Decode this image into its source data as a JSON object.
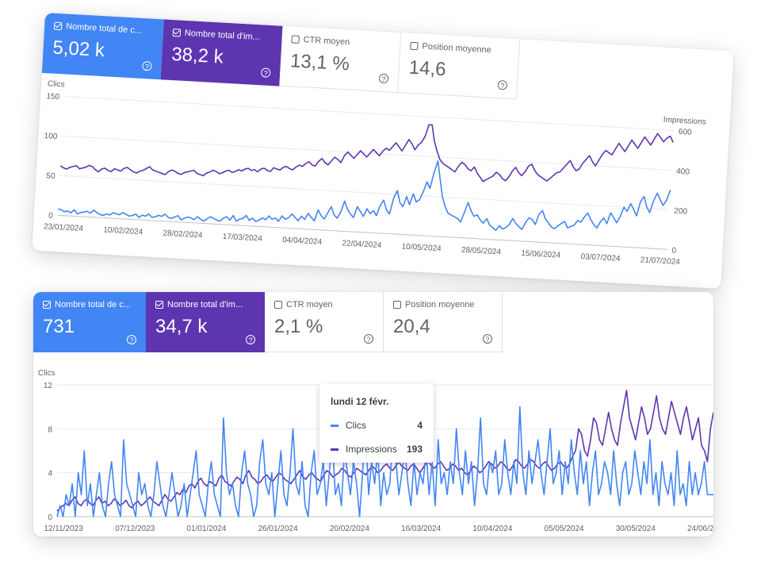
{
  "colors": {
    "clicks": "#4285f4",
    "impressions": "#5e35b1",
    "axis_text": "#5f6368",
    "grid": "#e8eaed"
  },
  "top_panel": {
    "tiles": [
      {
        "label": "Nombre total de c...",
        "value": "5,02 k",
        "checked": true
      },
      {
        "label": "Nombre total d'im...",
        "value": "38,2 k",
        "checked": true
      },
      {
        "label": "CTR moyen",
        "value": "13,1 %",
        "checked": false
      },
      {
        "label": "Position moyenne",
        "value": "14,6",
        "checked": false
      }
    ]
  },
  "bottom_panel": {
    "tiles": [
      {
        "label": "Nombre total de c...",
        "value": "731",
        "checked": true
      },
      {
        "label": "Nombre total d'im...",
        "value": "34,7 k",
        "checked": true
      },
      {
        "label": "CTR moyen",
        "value": "2,1 %",
        "checked": false
      },
      {
        "label": "Position moyenne",
        "value": "20,4",
        "checked": false
      }
    ],
    "tooltip": {
      "date": "lundi 12 févr.",
      "rows": [
        {
          "label": "Clics",
          "value": "4"
        },
        {
          "label": "Impressions",
          "value": "193"
        }
      ]
    }
  },
  "chart_data": [
    {
      "type": "line",
      "title": "",
      "y_left_label": "Clics",
      "y_right_label": "Impressions",
      "ylim_left": [
        0,
        150
      ],
      "ylim_right": [
        0,
        600
      ],
      "y_left_ticks": [
        "0",
        "50",
        "100",
        "150"
      ],
      "y_right_ticks": [
        "0",
        "200",
        "400",
        "600"
      ],
      "x_tick_labels": [
        "23/01/2024",
        "10/02/2024",
        "28/02/2024",
        "17/03/2024",
        "04/04/2024",
        "22/04/2024",
        "10/05/2024",
        "28/05/2024",
        "15/06/2024",
        "03/07/2024",
        "21/07/2024"
      ],
      "grid": true,
      "series": [
        {
          "name": "Clics",
          "axis": "left",
          "values": [
            8,
            7,
            5,
            6,
            4,
            8,
            3,
            5,
            6,
            7,
            5,
            9,
            6,
            4,
            3,
            5,
            4,
            7,
            6,
            5,
            8,
            6,
            4,
            5,
            7,
            3,
            6,
            5,
            8,
            4,
            5,
            7,
            6,
            9,
            5,
            4,
            6,
            8,
            3,
            5,
            7,
            6,
            4,
            8,
            5,
            3,
            6,
            9,
            7,
            5,
            4,
            8,
            10,
            6,
            12,
            5,
            8,
            9,
            13,
            7,
            10,
            6,
            8,
            11,
            9,
            14,
            10,
            12,
            8,
            15,
            11,
            13,
            18,
            14,
            10,
            16,
            12,
            20,
            15,
            11,
            25,
            18,
            14,
            22,
            30,
            20,
            16,
            24,
            38,
            28,
            22,
            18,
            32,
            26,
            20,
            30,
            24,
            28,
            22,
            35,
            42,
            30,
            25,
            45,
            55,
            40,
            35,
            48,
            38,
            52,
            42,
            45,
            55,
            68,
            60,
            80,
            95,
            72,
            50,
            38,
            30,
            28,
            26,
            24,
            20,
            32,
            45,
            35,
            28,
            30,
            24,
            20,
            26,
            18,
            15,
            12,
            18,
            14,
            16,
            20,
            28,
            22,
            18,
            15,
            24,
            30,
            28,
            22,
            35,
            40,
            30,
            25,
            20,
            18,
            22,
            25,
            28,
            20,
            22,
            24,
            30,
            28,
            35,
            40,
            32,
            26,
            22,
            30,
            35,
            28,
            42,
            36,
            30,
            38,
            50,
            45,
            55,
            48,
            40,
            58,
            65,
            52,
            45,
            60,
            70,
            62,
            55,
            62,
            75
          ]
        },
        {
          "name": "Impressions",
          "axis": "right",
          "values": [
            250,
            240,
            235,
            245,
            250,
            255,
            240,
            245,
            250,
            260,
            255,
            240,
            230,
            245,
            250,
            240,
            235,
            250,
            245,
            240,
            255,
            260,
            250,
            240,
            235,
            245,
            250,
            260,
            270,
            255,
            250,
            245,
            240,
            235,
            250,
            260,
            255,
            245,
            240,
            250,
            255,
            260,
            265,
            250,
            245,
            240,
            255,
            260,
            270,
            265,
            255,
            260,
            270,
            275,
            265,
            270,
            280,
            275,
            285,
            290,
            280,
            285,
            275,
            290,
            295,
            285,
            280,
            300,
            295,
            290,
            305,
            310,
            300,
            295,
            310,
            320,
            315,
            330,
            340,
            325,
            320,
            345,
            360,
            340,
            330,
            350,
            370,
            360,
            345,
            380,
            400,
            385,
            370,
            390,
            410,
            395,
            380,
            400,
            420,
            405,
            390,
            415,
            430,
            420,
            440,
            460,
            440,
            420,
            450,
            480,
            460,
            430,
            455,
            470,
            500,
            560,
            560,
            480,
            430,
            390,
            370,
            360,
            350,
            340,
            330,
            360,
            380,
            370,
            350,
            340,
            360,
            330,
            310,
            290,
            300,
            310,
            320,
            340,
            330,
            310,
            300,
            320,
            350,
            370,
            345,
            330,
            350,
            380,
            390,
            360,
            340,
            330,
            320,
            310,
            325,
            340,
            355,
            360,
            380,
            400,
            420,
            390,
            370,
            380,
            410,
            430,
            450,
            420,
            400,
            430,
            460,
            480,
            470,
            460,
            490,
            520,
            500,
            480,
            510,
            540,
            520,
            500,
            530,
            560,
            540,
            520,
            550,
            580,
            560,
            540,
            560,
            570,
            540
          ]
        }
      ]
    },
    {
      "type": "line",
      "title": "",
      "y_left_label": "Clics",
      "ylim_left": [
        0,
        12
      ],
      "y_left_ticks": [
        "0",
        "4",
        "8",
        "12"
      ],
      "x_tick_labels": [
        "12/11/2023",
        "07/12/2023",
        "01/01/2024",
        "26/01/2024",
        "20/02/2024",
        "16/03/2024",
        "10/04/2024",
        "05/05/2024",
        "30/05/2024",
        "24/06/2024"
      ],
      "grid": true,
      "series": [
        {
          "name": "Clics",
          "axis": "left",
          "values": [
            0,
            1,
            0,
            2,
            1,
            3,
            0,
            4,
            2,
            6,
            1,
            3,
            0,
            2,
            4,
            1,
            0,
            3,
            5,
            2,
            1,
            0,
            7,
            3,
            2,
            1,
            0,
            4,
            2,
            3,
            1,
            0,
            2,
            5,
            3,
            1,
            0,
            2,
            4,
            2,
            0,
            1,
            3,
            0,
            2,
            4,
            6,
            2,
            1,
            0,
            3,
            5,
            2,
            1,
            0,
            9,
            4,
            2,
            3,
            1,
            0,
            4,
            6,
            3,
            2,
            0,
            1,
            5,
            7,
            3,
            2,
            4,
            0,
            3,
            6,
            2,
            1,
            4,
            8,
            3,
            2,
            5,
            1,
            0,
            4,
            6,
            2,
            3,
            5,
            1,
            4,
            7,
            2,
            3,
            1,
            6,
            4,
            2,
            5,
            3,
            0,
            4,
            8,
            2,
            5,
            3,
            6,
            1,
            4,
            2,
            3,
            7,
            5,
            2,
            4,
            6,
            3,
            1,
            5,
            2,
            4,
            3,
            6,
            2,
            5,
            1,
            7,
            3,
            4,
            2,
            5,
            3,
            8,
            4,
            2,
            6,
            3,
            5,
            1,
            4,
            9,
            3,
            2,
            5,
            4,
            6,
            2,
            3,
            7,
            4,
            2,
            5,
            3,
            10,
            4,
            2,
            6,
            3,
            5,
            7,
            4,
            2,
            5,
            8,
            3,
            4,
            6,
            2,
            5,
            3,
            7,
            4,
            2,
            6,
            3,
            5,
            1,
            4,
            6,
            2,
            3,
            5,
            4,
            2,
            6,
            3,
            1,
            4,
            5,
            2,
            3,
            6,
            4,
            2,
            5,
            3,
            7,
            2,
            4,
            1,
            5,
            3,
            2,
            4,
            1,
            6,
            2,
            3,
            1,
            5,
            2,
            4,
            2,
            3,
            5,
            2,
            2,
            2
          ]
        },
        {
          "name": "Impressions",
          "axis": "left",
          "values": [
            0.5,
            0.8,
            1.0,
            1.2,
            1.0,
            1.5,
            1.8,
            1.2,
            1.0,
            1.4,
            1.6,
            1.2,
            1.0,
            1.5,
            1.8,
            1.2,
            1.4,
            1.0,
            1.2,
            1.6,
            1.4,
            1.0,
            1.2,
            1.5,
            1.0,
            0.8,
            1.2,
            1.4,
            1.0,
            1.2,
            1.5,
            1.8,
            1.4,
            1.2,
            1.0,
            1.5,
            2.0,
            1.6,
            1.4,
            1.8,
            2.2,
            2.0,
            2.5,
            2.2,
            2.8,
            3.0,
            2.6,
            3.2,
            3.5,
            3.0,
            2.8,
            3.2,
            3.0,
            2.8,
            3.5,
            3.8,
            3.2,
            3.0,
            2.8,
            3.2,
            3.6,
            3.4,
            3.0,
            3.8,
            4.2,
            3.6,
            3.4,
            3.0,
            3.2,
            3.6,
            3.8,
            3.4,
            3.2,
            3.6,
            4.0,
            3.8,
            3.4,
            3.2,
            3.0,
            3.4,
            3.8,
            4.2,
            3.6,
            3.4,
            3.8,
            4.0,
            3.6,
            3.4,
            3.2,
            3.8,
            4.2,
            4.0,
            3.6,
            3.8,
            4.0,
            4.4,
            4.2,
            3.8,
            3.6,
            4.0,
            4.4,
            4.2,
            4.0,
            3.8,
            4.2,
            4.6,
            4.4,
            4.0,
            4.2,
            4.6,
            4.8,
            4.4,
            4.2,
            4.6,
            5.0,
            4.6,
            4.4,
            4.2,
            4.6,
            4.8,
            4.4,
            4.0,
            4.4,
            4.8,
            5.0,
            4.6,
            4.4,
            4.8,
            5.0,
            4.6,
            4.2,
            4.4,
            4.8,
            4.6,
            4.2,
            4.4,
            4.0,
            3.8,
            4.2,
            4.6,
            4.4,
            4.0,
            4.2,
            4.6,
            5.0,
            4.8,
            4.4,
            4.6,
            5.0,
            4.8,
            4.4,
            4.2,
            4.6,
            5.2,
            5.0,
            4.6,
            4.4,
            4.8,
            5.2,
            5.0,
            4.6,
            4.4,
            4.8,
            5.0,
            4.6,
            4.2,
            4.4,
            4.8,
            5.0,
            4.6,
            4.4,
            4.8,
            5.5,
            6.0,
            8.0,
            7.5,
            6.0,
            5.5,
            7.0,
            9.0,
            8.5,
            7.0,
            6.5,
            8.0,
            9.5,
            8.0,
            7.0,
            6.5,
            8.5,
            10.0,
            11.5,
            9.0,
            8.0,
            7.0,
            8.5,
            10.0,
            9.0,
            7.5,
            8.0,
            9.5,
            11.0,
            9.0,
            8.0,
            7.5,
            9.0,
            10.5,
            9.5,
            8.5,
            7.5,
            9.0,
            10.0,
            8.5,
            7.0,
            8.0,
            9.0,
            6.5,
            6.0,
            5.0,
            8.0,
            9.5
          ]
        }
      ]
    }
  ]
}
